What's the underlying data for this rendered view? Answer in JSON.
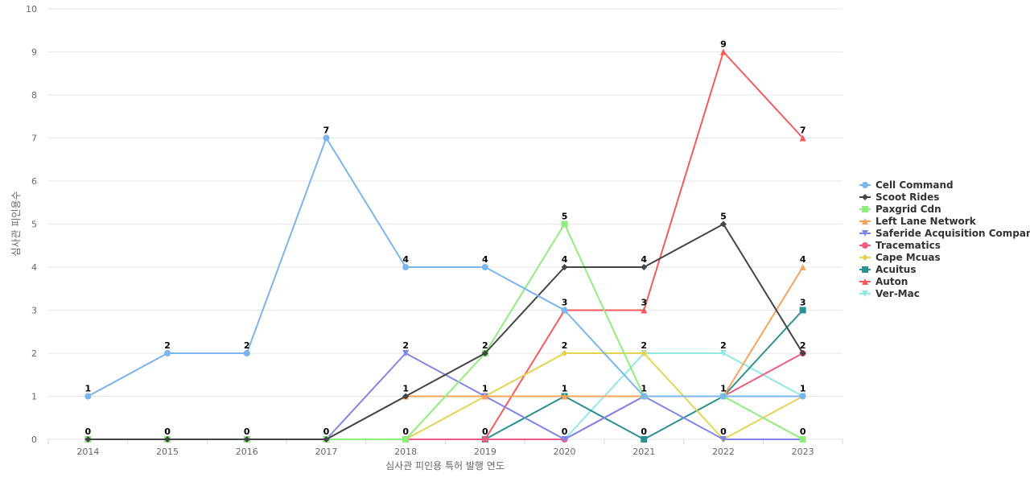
{
  "chart_data": {
    "type": "line",
    "title": "",
    "xlabel": "심사관 피인용 특허 발행 연도",
    "ylabel": "심사관 피인용수",
    "categories": [
      "2014",
      "2015",
      "2016",
      "2017",
      "2018",
      "2019",
      "2020",
      "2021",
      "2022",
      "2023"
    ],
    "ylim": [
      0,
      10
    ],
    "yticks": [
      0,
      1,
      2,
      3,
      4,
      5,
      6,
      7,
      8,
      9,
      10
    ],
    "grid": true,
    "legend_position": "right",
    "series": [
      {
        "name": "Cell Command",
        "color": "#7cb5ec",
        "marker": "circle",
        "values": [
          1,
          2,
          2,
          7,
          4,
          4,
          3,
          1,
          1,
          1
        ]
      },
      {
        "name": "Scoot Rides",
        "color": "#434348",
        "marker": "diamond",
        "values": [
          0,
          0,
          0,
          0,
          1,
          2,
          4,
          4,
          5,
          2
        ]
      },
      {
        "name": "Paxgrid Cdn",
        "color": "#90ed7d",
        "marker": "square",
        "values": [
          0,
          0,
          0,
          0,
          0,
          2,
          5,
          1,
          1,
          0
        ]
      },
      {
        "name": "Left Lane Network",
        "color": "#f7a35c",
        "marker": "triangle",
        "values": [
          0,
          0,
          0,
          0,
          1,
          1,
          1,
          1,
          1,
          4
        ]
      },
      {
        "name": "Saferide Acquisition Company",
        "color": "#8085e9",
        "marker": "triangle-down",
        "values": [
          0,
          0,
          0,
          0,
          2,
          1,
          0,
          1,
          0,
          0
        ]
      },
      {
        "name": "Tracematics",
        "color": "#f15c80",
        "marker": "circle",
        "values": [
          0,
          0,
          0,
          0,
          0,
          0,
          0,
          1,
          1,
          2
        ]
      },
      {
        "name": "Cape Mcuas",
        "color": "#e4d354",
        "marker": "diamond",
        "values": [
          0,
          0,
          0,
          0,
          0,
          1,
          2,
          2,
          0,
          1
        ]
      },
      {
        "name": "Acuitus",
        "color": "#2b908f",
        "marker": "square",
        "values": [
          0,
          0,
          0,
          0,
          0,
          0,
          1,
          0,
          1,
          3
        ]
      },
      {
        "name": "Auton",
        "color": "#f45b5b",
        "marker": "triangle",
        "values": [
          0,
          0,
          0,
          0,
          0,
          0,
          3,
          3,
          9,
          7
        ]
      },
      {
        "name": "Ver-Mac",
        "color": "#91e8e1",
        "marker": "triangle-down",
        "values": [
          0,
          0,
          0,
          0,
          0,
          0,
          0,
          2,
          2,
          1
        ]
      }
    ],
    "data_labels": [
      {
        "category": "2014",
        "value": 1,
        "text": "1"
      },
      {
        "category": "2014",
        "value": 0,
        "text": "0"
      },
      {
        "category": "2015",
        "value": 2,
        "text": "2"
      },
      {
        "category": "2015",
        "value": 0,
        "text": "0"
      },
      {
        "category": "2016",
        "value": 2,
        "text": "2"
      },
      {
        "category": "2016",
        "value": 0,
        "text": "0"
      },
      {
        "category": "2017",
        "value": 7,
        "text": "7"
      },
      {
        "category": "2017",
        "value": 0,
        "text": "0"
      },
      {
        "category": "2018",
        "value": 4,
        "text": "4"
      },
      {
        "category": "2018",
        "value": 2,
        "text": "2"
      },
      {
        "category": "2018",
        "value": 1,
        "text": "1"
      },
      {
        "category": "2018",
        "value": 0,
        "text": "0"
      },
      {
        "category": "2019",
        "value": 4,
        "text": "4"
      },
      {
        "category": "2019",
        "value": 2,
        "text": "2"
      },
      {
        "category": "2019",
        "value": 1,
        "text": "1"
      },
      {
        "category": "2019",
        "value": 0,
        "text": "0"
      },
      {
        "category": "2020",
        "value": 5,
        "text": "5"
      },
      {
        "category": "2020",
        "value": 4,
        "text": "4"
      },
      {
        "category": "2020",
        "value": 3,
        "text": "3"
      },
      {
        "category": "2020",
        "value": 2,
        "text": "2"
      },
      {
        "category": "2020",
        "value": 1,
        "text": "1"
      },
      {
        "category": "2020",
        "value": 0,
        "text": "0"
      },
      {
        "category": "2021",
        "value": 4,
        "text": "4"
      },
      {
        "category": "2021",
        "value": 3,
        "text": "3"
      },
      {
        "category": "2021",
        "value": 2,
        "text": "2"
      },
      {
        "category": "2021",
        "value": 1,
        "text": "1"
      },
      {
        "category": "2021",
        "value": 0,
        "text": "0"
      },
      {
        "category": "2022",
        "value": 9,
        "text": "9"
      },
      {
        "category": "2022",
        "value": 5,
        "text": "5"
      },
      {
        "category": "2022",
        "value": 2,
        "text": "2"
      },
      {
        "category": "2022",
        "value": 1,
        "text": "1"
      },
      {
        "category": "2022",
        "value": 0,
        "text": "0"
      },
      {
        "category": "2023",
        "value": 7,
        "text": "7"
      },
      {
        "category": "2023",
        "value": 4,
        "text": "4"
      },
      {
        "category": "2023",
        "value": 3,
        "text": "3"
      },
      {
        "category": "2023",
        "value": 2,
        "text": "2"
      },
      {
        "category": "2023",
        "value": 1,
        "text": "1"
      },
      {
        "category": "2023",
        "value": 0,
        "text": "0"
      }
    ]
  }
}
